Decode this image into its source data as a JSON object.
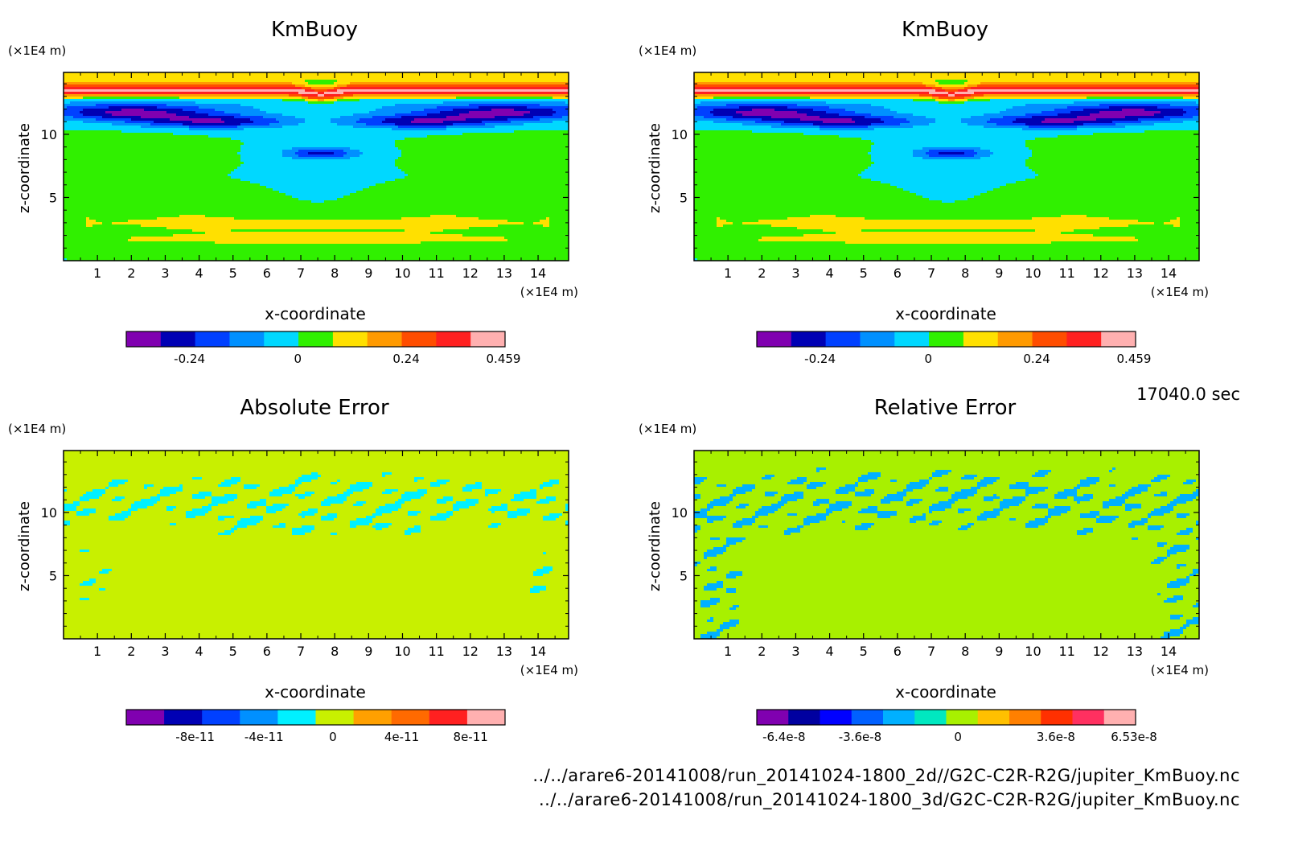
{
  "time_label": "17040.0 sec",
  "footer": {
    "line1": "../../arare6-20141008/run_20141024-1800_2d//G2C-C2R-R2G/jupiter_KmBuoy.nc",
    "line2": "../../arare6-20141008/run_20141024-1800_3d/G2C-C2R-R2G/jupiter_KmBuoy.nc"
  },
  "chart_data": [
    {
      "type": "heatmap",
      "title": "KmBuoy",
      "xlabel": "x-coordinate",
      "ylabel": "z-coordinate",
      "x_unit": "(×1E4 m)",
      "y_unit": "(×1E4 m)",
      "x_ticks": [
        "1",
        "2",
        "3",
        "4",
        "5",
        "6",
        "7",
        "8",
        "9",
        "10",
        "11",
        "12",
        "13",
        "14"
      ],
      "y_ticks": [
        "5",
        "10"
      ],
      "xlim": [
        0,
        14.9
      ],
      "ylim": [
        0,
        14.9
      ],
      "colorbar": {
        "colors": [
          "#8000b0",
          "#0000b4",
          "#0040ff",
          "#0090ff",
          "#00d8ff",
          "#30f000",
          "#ffe000",
          "#ff9a00",
          "#ff4d00",
          "#ff2020",
          "#ffb0b0"
        ],
        "tick_labels": [
          "-0.24",
          "0",
          "0.24",
          "0.459"
        ],
        "tick_values": [
          -0.24,
          0,
          0.24,
          0.459
        ],
        "range": [
          -0.38,
          0.459
        ]
      },
      "field": "kmbuoy"
    },
    {
      "type": "heatmap",
      "title": "KmBuoy",
      "xlabel": "x-coordinate",
      "ylabel": "z-coordinate",
      "x_unit": "(×1E4 m)",
      "y_unit": "(×1E4 m)",
      "x_ticks": [
        "1",
        "2",
        "3",
        "4",
        "5",
        "6",
        "7",
        "8",
        "9",
        "10",
        "11",
        "12",
        "13",
        "14"
      ],
      "y_ticks": [
        "5",
        "10"
      ],
      "xlim": [
        0,
        14.9
      ],
      "ylim": [
        0,
        14.9
      ],
      "colorbar": {
        "colors": [
          "#8000b0",
          "#0000b4",
          "#0040ff",
          "#0090ff",
          "#00d8ff",
          "#30f000",
          "#ffe000",
          "#ff9a00",
          "#ff4d00",
          "#ff2020",
          "#ffb0b0"
        ],
        "tick_labels": [
          "-0.24",
          "0",
          "0.24",
          "0.459"
        ],
        "tick_values": [
          -0.24,
          0,
          0.24,
          0.459
        ],
        "range": [
          -0.38,
          0.459
        ]
      },
      "field": "kmbuoy"
    },
    {
      "type": "heatmap",
      "title": "Absolute Error",
      "xlabel": "x-coordinate",
      "ylabel": "z-coordinate",
      "x_unit": "(×1E4 m)",
      "y_unit": "(×1E4 m)",
      "x_ticks": [
        "1",
        "2",
        "3",
        "4",
        "5",
        "6",
        "7",
        "8",
        "9",
        "10",
        "11",
        "12",
        "13",
        "14"
      ],
      "y_ticks": [
        "5",
        "10"
      ],
      "xlim": [
        0,
        14.9
      ],
      "ylim": [
        0,
        14.9
      ],
      "colorbar": {
        "colors": [
          "#8000b0",
          "#0000b4",
          "#0040ff",
          "#0090ff",
          "#00f0ff",
          "#c8f000",
          "#ffa000",
          "#ff6a00",
          "#ff2020",
          "#ffb0b0"
        ],
        "tick_labels": [
          "-8e-11",
          "-4e-11",
          "0",
          "4e-11",
          "8e-11"
        ],
        "tick_values": [
          -8e-11,
          -4e-11,
          0,
          4e-11,
          8e-11
        ],
        "range": [
          -1.2e-10,
          1e-10
        ]
      },
      "field": "abs_error"
    },
    {
      "type": "heatmap",
      "title": "Relative Error",
      "xlabel": "x-coordinate",
      "ylabel": "z-coordinate",
      "x_unit": "(×1E4 m)",
      "y_unit": "(×1E4 m)",
      "x_ticks": [
        "1",
        "2",
        "3",
        "4",
        "5",
        "6",
        "7",
        "8",
        "9",
        "10",
        "11",
        "12",
        "13",
        "14"
      ],
      "y_ticks": [
        "5",
        "10"
      ],
      "xlim": [
        0,
        14.9
      ],
      "ylim": [
        0,
        14.9
      ],
      "colorbar": {
        "colors": [
          "#8000b0",
          "#0000a0",
          "#0000ff",
          "#0060ff",
          "#00b0ff",
          "#00e8c0",
          "#a8f000",
          "#ffc000",
          "#ff8000",
          "#ff3000",
          "#ff3060",
          "#ffb0b0"
        ],
        "tick_labels": [
          "-6.4e-8",
          "-3.6e-8",
          "0",
          "3.6e-8",
          "6.53e-8"
        ],
        "tick_values": [
          -6.4e-08,
          -3.6e-08,
          0,
          3.6e-08,
          6.53e-08
        ],
        "range": [
          -7.4e-08,
          6.53e-08
        ]
      },
      "field": "rel_error"
    }
  ]
}
